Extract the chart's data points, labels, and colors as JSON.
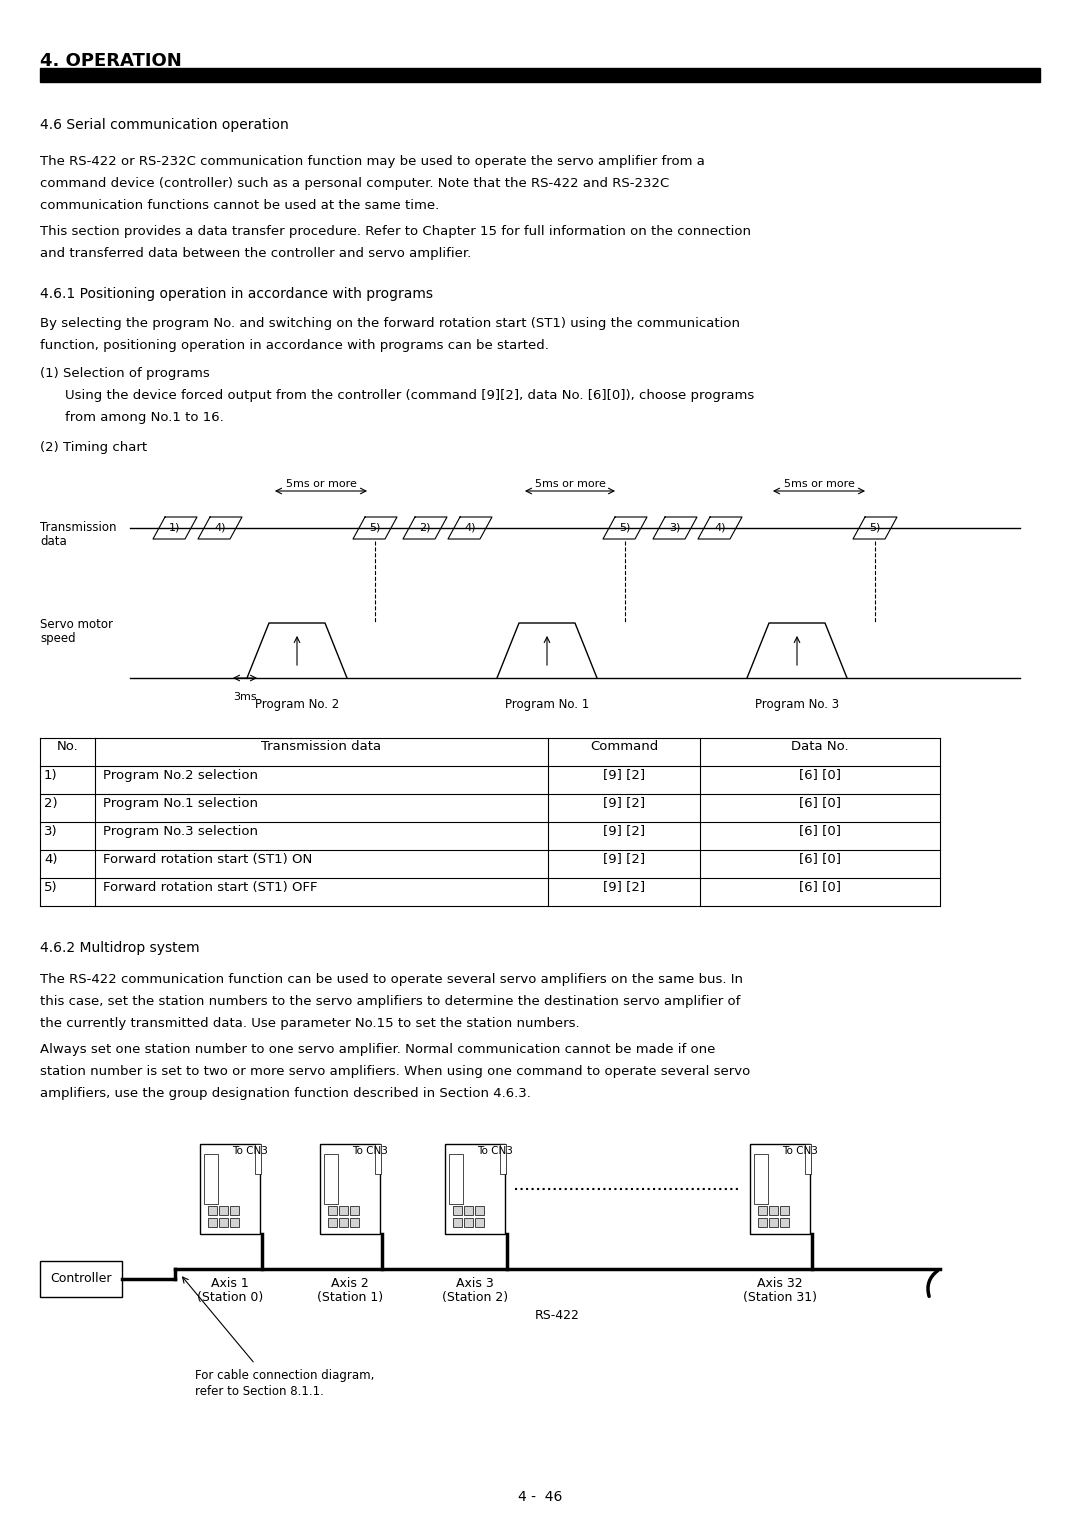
{
  "title": "4. OPERATION",
  "section_46": "4.6 Serial communication operation",
  "para1_line1": "The RS-422 or RS-232C communication function may be used to operate the servo amplifier from a",
  "para1_line2": "command device (controller) such as a personal computer. Note that the RS-422 and RS-232C",
  "para1_line3": "communication functions cannot be used at the same time.",
  "para1_line4": "This section provides a data transfer procedure. Refer to Chapter 15 for full information on the connection",
  "para1_line5": "and transferred data between the controller and servo amplifier.",
  "section_461": "4.6.1 Positioning operation in accordance with programs",
  "para2_line1": "By selecting the program No. and switching on the forward rotation start (ST1) using the communication",
  "para2_line2": "function, positioning operation in accordance with programs can be started.",
  "sub1_title": "(1) Selection of programs",
  "sub1_line1": "Using the device forced output from the controller (command [9][2], data No. [6][0]), choose programs",
  "sub1_line2": "from among No.1 to 16.",
  "sub2_title": "(2) Timing chart",
  "table_headers": [
    "No.",
    "Transmission data",
    "Command",
    "Data No."
  ],
  "table_rows": [
    [
      "1)",
      "Program No.2 selection",
      "[9] [2]",
      "[6] [0]"
    ],
    [
      "2)",
      "Program No.1 selection",
      "[9] [2]",
      "[6] [0]"
    ],
    [
      "3)",
      "Program No.3 selection",
      "[9] [2]",
      "[6] [0]"
    ],
    [
      "4)",
      "Forward rotation start (ST1) ON",
      "[9] [2]",
      "[6] [0]"
    ],
    [
      "5)",
      "Forward rotation start (ST1) OFF",
      "[9] [2]",
      "[6] [0]"
    ]
  ],
  "section_462": "4.6.2 Multidrop system",
  "para3_line1": "The RS-422 communication function can be used to operate several servo amplifiers on the same bus. In",
  "para3_line2": "this case, set the station numbers to the servo amplifiers to determine the destination servo amplifier of",
  "para3_line3": "the currently transmitted data. Use parameter No.15 to set the station numbers.",
  "para3_line4": "Always set one station number to one servo amplifier. Normal communication cannot be made if one",
  "para3_line5": "station number is set to two or more servo amplifiers. When using one command to operate several servo",
  "para3_line6": "amplifiers, use the group designation function described in Section 4.6.3.",
  "page_num": "4 -  46",
  "bg_color": "#ffffff",
  "text_color": "#000000"
}
